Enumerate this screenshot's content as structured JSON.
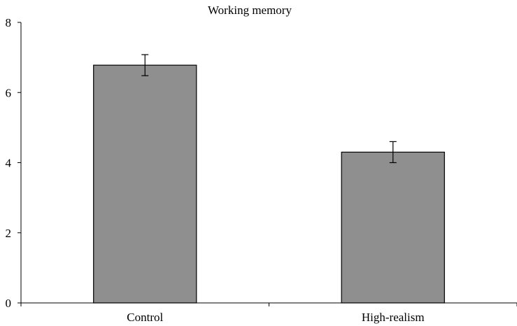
{
  "chart_data": {
    "type": "bar",
    "title": "Working memory",
    "xlabel": "",
    "ylabel": "",
    "categories": [
      "Control",
      "High-realism"
    ],
    "values": [
      6.78,
      4.3
    ],
    "errors": [
      0.3,
      0.3
    ],
    "ylim": [
      0,
      8
    ],
    "yticks": [
      0,
      2,
      4,
      6,
      8
    ],
    "grid": false,
    "legend": "none",
    "bar_color": "#8f8f8f"
  }
}
